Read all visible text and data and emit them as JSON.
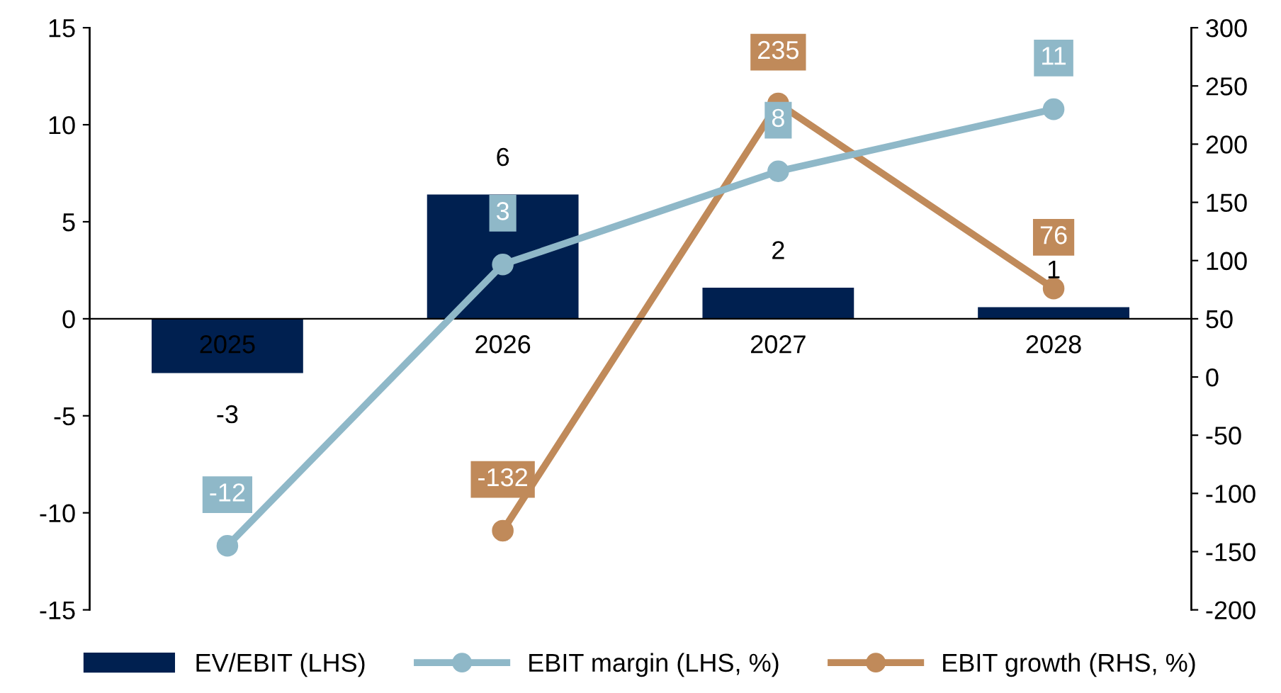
{
  "chart_data": {
    "type": "bar",
    "categories": [
      "2025",
      "2026",
      "2027",
      "2028"
    ],
    "series": [
      {
        "name": "EV/EBIT (LHS)",
        "color": "#002050",
        "values": [
          -2.8,
          6.4,
          1.6,
          0.6
        ],
        "value_labels": [
          "-3",
          "6",
          "2",
          "1"
        ]
      },
      {
        "name": "EBIT margin (LHS, %)",
        "type": "line",
        "color": "#8fb8c8",
        "marker": "circle",
        "values": [
          -11.7,
          2.8,
          7.6,
          10.8
        ],
        "value_labels": [
          "-12",
          "3",
          "8",
          "11"
        ]
      },
      {
        "name": "EBIT growth (RHS, %)",
        "type": "line",
        "color": "#c08a5a",
        "marker": "circle",
        "axis": "y2",
        "values": [
          null,
          -132,
          235,
          76
        ],
        "value_labels": [
          null,
          "-132",
          "235",
          "76"
        ]
      }
    ],
    "ylim": [
      -15,
      15
    ],
    "yticks": [
      -15,
      -10,
      -5,
      0,
      5,
      10,
      15
    ],
    "y2lim": [
      -200,
      300
    ],
    "y2ticks": [
      -200,
      -150,
      -100,
      -50,
      0,
      50,
      100,
      150,
      200,
      250,
      300
    ],
    "grid": false,
    "legend": "bottom"
  }
}
